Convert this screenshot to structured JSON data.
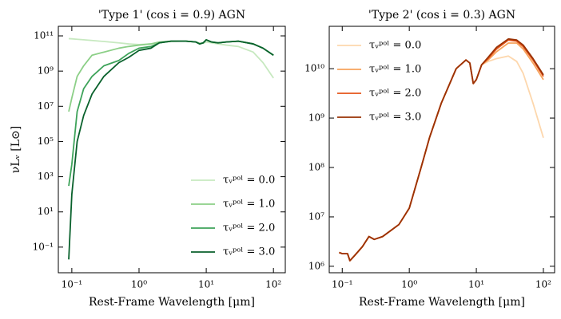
{
  "chart_data": [
    {
      "type": "line",
      "title": "'Type 1' (cos i = 0.9) AGN",
      "x_label": "Rest-Frame Wavelength [μm]",
      "y_label": "νLᵥ [L⊙]",
      "log_x": true,
      "log_y": true,
      "legend": "lower right",
      "xlim": [
        0.063,
        150
      ],
      "ylim": [
        0.0035,
        350000000000.0
      ],
      "xticks": [
        {
          "value": 0.1,
          "label": "10⁻¹"
        },
        {
          "value": 1,
          "label": "10⁰"
        },
        {
          "value": 10,
          "label": "10¹"
        },
        {
          "value": 100,
          "label": "10²"
        }
      ],
      "yticks": [
        {
          "value": 0.1,
          "label": "10⁻¹"
        },
        {
          "value": 10,
          "label": "10¹"
        },
        {
          "value": 1000,
          "label": "10³"
        },
        {
          "value": 100000,
          "label": "10⁵"
        },
        {
          "value": 10000000,
          "label": "10⁷"
        },
        {
          "value": 1000000000,
          "label": "10⁹"
        },
        {
          "value": 100000000000,
          "label": "10¹¹"
        }
      ],
      "x": [
        0.09,
        0.1,
        0.12,
        0.15,
        0.2,
        0.3,
        0.5,
        0.7,
        1,
        1.5,
        2,
        3,
        5,
        7,
        8,
        9,
        10,
        12,
        15,
        20,
        30,
        50,
        70,
        100
      ],
      "series": [
        {
          "name": "τᵥᵖᵒˡ = 0.0",
          "color": "#c7e9c0",
          "values": [
            70000000000.0,
            68000000000.0,
            64000000000.0,
            60000000000.0,
            55000000000.0,
            48000000000.0,
            40000000000.0,
            35000000000.0,
            32000000000.0,
            35000000000.0,
            42000000000.0,
            48000000000.0,
            50000000000.0,
            45000000000.0,
            40000000000.0,
            38000000000.0,
            45000000000.0,
            40000000000.0,
            35000000000.0,
            30000000000.0,
            25000000000.0,
            12000000000.0,
            3000000000.0,
            400000000.0
          ]
        },
        {
          "name": "τᵥᵖᵒˡ = 1.0",
          "color": "#8ccf87",
          "values": [
            5000000.0,
            30000000.0,
            500000000.0,
            2000000000.0,
            8000000000.0,
            12000000000.0,
            20000000000.0,
            25000000000.0,
            30000000000.0,
            35000000000.0,
            45000000000.0,
            50000000000.0,
            50000000000.0,
            45000000000.0,
            35000000000.0,
            40000000000.0,
            60000000000.0,
            45000000000.0,
            40000000000.0,
            45000000000.0,
            50000000000.0,
            35000000000.0,
            20000000000.0,
            8000000000.0
          ]
        },
        {
          "name": "τᵥᵖᵒˡ = 2.0",
          "color": "#3ea35a",
          "values": [
            300,
            5000,
            5000000.0,
            100000000.0,
            500000000.0,
            2000000000.0,
            4000000000.0,
            10000000000.0,
            20000000000.0,
            25000000000.0,
            40000000000.0,
            50000000000.0,
            50000000000.0,
            45000000000.0,
            35000000000.0,
            40000000000.0,
            60000000000.0,
            45000000000.0,
            40000000000.0,
            45000000000.0,
            50000000000.0,
            35000000000.0,
            20000000000.0,
            8000000000.0
          ]
        },
        {
          "name": "τᵥᵖᵒˡ = 3.0",
          "color": "#09612c",
          "values": [
            0.02,
            100,
            100000,
            3000000.0,
            50000000.0,
            500000000.0,
            3000000000.0,
            6000000000.0,
            15000000000.0,
            20000000000.0,
            40000000000.0,
            50000000000.0,
            50000000000.0,
            45000000000.0,
            35000000000.0,
            40000000000.0,
            60000000000.0,
            45000000000.0,
            40000000000.0,
            45000000000.0,
            50000000000.0,
            35000000000.0,
            20000000000.0,
            8000000000.0
          ]
        }
      ]
    },
    {
      "type": "line",
      "title": "'Type 2' (cos i = 0.3) AGN",
      "x_label": "Rest-Frame Wavelength [μm]",
      "log_x": true,
      "log_y": true,
      "legend": "upper left",
      "xlim": [
        0.064,
        147
      ],
      "ylim": [
        740000,
        72000000000.0
      ],
      "xticks": [
        {
          "value": 0.1,
          "label": "10⁻¹"
        },
        {
          "value": 1,
          "label": "10⁰"
        },
        {
          "value": 10,
          "label": "10¹"
        },
        {
          "value": 100,
          "label": "10²"
        }
      ],
      "yticks": [
        {
          "value": 1000000,
          "label": "10⁶"
        },
        {
          "value": 10000000,
          "label": "10⁷"
        },
        {
          "value": 100000000,
          "label": "10⁸"
        },
        {
          "value": 1000000000,
          "label": "10⁹"
        },
        {
          "value": 10000000000,
          "label": "10¹⁰"
        }
      ],
      "x": [
        0.09,
        0.1,
        0.12,
        0.13,
        0.15,
        0.2,
        0.25,
        0.3,
        0.4,
        0.5,
        0.7,
        1,
        1.5,
        2,
        3,
        5,
        7,
        8,
        9,
        10,
        12,
        15,
        20,
        30,
        40,
        50,
        70,
        100
      ],
      "series": [
        {
          "name": "τᵥᵖᵒˡ = 0.0",
          "color": "#fdd7ad",
          "values": [
            1900000.0,
            1800000.0,
            1800000.0,
            1300000.0,
            1600000.0,
            2500000.0,
            4000000.0,
            3500000.0,
            4000000.0,
            5000000.0,
            7000000.0,
            15000000.0,
            100000000.0,
            400000000.0,
            2000000000.0,
            10000000000.0,
            15000000000.0,
            13000000000.0,
            5000000000.0,
            6000000000.0,
            12000000000.0,
            14000000000.0,
            16000000000.0,
            18000000000.0,
            14000000000.0,
            8000000000.0,
            2000000000.0,
            400000000.0
          ]
        },
        {
          "name": "τᵥᵖᵒˡ = 1.0",
          "color": "#f7a35c",
          "values": [
            1900000.0,
            1800000.0,
            1800000.0,
            1300000.0,
            1600000.0,
            2500000.0,
            4000000.0,
            3500000.0,
            4000000.0,
            5000000.0,
            7000000.0,
            15000000.0,
            100000000.0,
            400000000.0,
            2000000000.0,
            10000000000.0,
            15000000000.0,
            13000000000.0,
            5000000000.0,
            6000000000.0,
            12000000000.0,
            15000000000.0,
            22000000000.0,
            33000000000.0,
            33000000000.0,
            25000000000.0,
            13000000000.0,
            6000000000.0
          ]
        },
        {
          "name": "τᵥᵖᵒˡ = 2.0",
          "color": "#e5541a",
          "values": [
            1900000.0,
            1800000.0,
            1800000.0,
            1300000.0,
            1600000.0,
            2500000.0,
            4000000.0,
            3500000.0,
            4000000.0,
            5000000.0,
            7000000.0,
            15000000.0,
            100000000.0,
            400000000.0,
            2000000000.0,
            10000000000.0,
            15000000000.0,
            13000000000.0,
            5000000000.0,
            6000000000.0,
            12000000000.0,
            16000000000.0,
            25000000000.0,
            38000000000.0,
            36000000000.0,
            28000000000.0,
            15000000000.0,
            7000000000.0
          ]
        },
        {
          "name": "τᵥᵖᵒˡ = 3.0",
          "color": "#9a3205",
          "values": [
            1900000.0,
            1800000.0,
            1800000.0,
            1300000.0,
            1600000.0,
            2500000.0,
            4000000.0,
            3500000.0,
            4000000.0,
            5000000.0,
            7000000.0,
            15000000.0,
            100000000.0,
            400000000.0,
            2000000000.0,
            10000000000.0,
            15000000000.0,
            13000000000.0,
            5000000000.0,
            6000000000.0,
            12000000000.0,
            17000000000.0,
            27000000000.0,
            40000000000.0,
            38000000000.0,
            30000000000.0,
            16000000000.0,
            7500000000.0
          ]
        }
      ]
    }
  ]
}
